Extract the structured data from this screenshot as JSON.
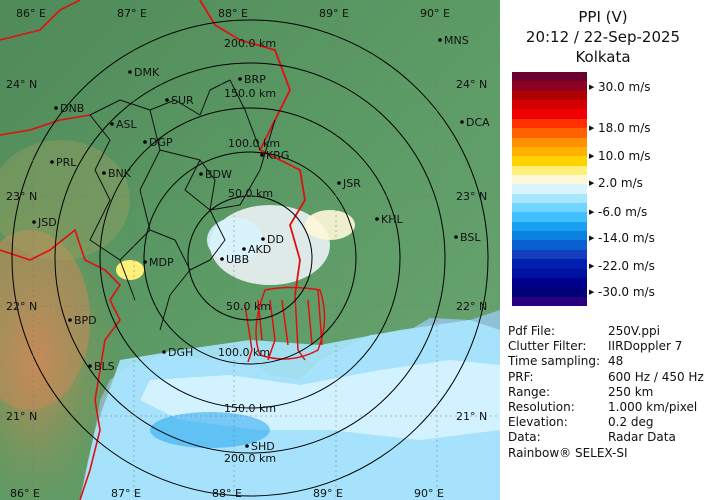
{
  "panel": {
    "title": "PPI (V)",
    "datetime": "20:12 / 22-Sep-2025",
    "site": "Kolkata",
    "footer": "Rainbow® SELEX-SI"
  },
  "scale": {
    "colors": [
      "#6a0030",
      "#8c0020",
      "#b00000",
      "#d40000",
      "#f00000",
      "#ff3000",
      "#ff6000",
      "#ff9000",
      "#ffb000",
      "#ffd200",
      "#fff07a",
      "#fff8d8",
      "#d8f4ff",
      "#a8e6ff",
      "#70d6ff",
      "#40c0ff",
      "#1aa0f0",
      "#0a80e0",
      "#0a60d0",
      "#1440c0",
      "#0020b0",
      "#0010a0",
      "#000090",
      "#000078",
      "#2a0080"
    ],
    "labels": [
      "30.0 m/s",
      "18.0 m/s",
      "10.0 m/s",
      "2.0 m/s",
      "-6.0 m/s",
      "-14.0 m/s",
      "-22.0 m/s",
      "-30.0 m/s"
    ]
  },
  "info": [
    {
      "label": "Pdf File:",
      "value": "250V.ppi"
    },
    {
      "label": "Clutter Filter:",
      "value": "IIRDoppler 7"
    },
    {
      "label": "Time sampling:",
      "value": "48"
    },
    {
      "label": "PRF:",
      "value": "600 Hz / 450 Hz"
    },
    {
      "label": "Range:",
      "value": "250 km"
    },
    {
      "label": "Resolution:",
      "value": "1.000 km/pixel"
    },
    {
      "label": "Elevation:",
      "value": "0.2 deg"
    },
    {
      "label": "Data:",
      "value": "Radar Data"
    }
  ],
  "map": {
    "lon_top": [
      "86° E",
      "87° E",
      "88° E",
      "89° E",
      "90° E"
    ],
    "lon_bottom": [
      "86° E",
      "87° E",
      "88° E",
      "89° E",
      "90° E"
    ],
    "lat_left": [
      "24° N",
      "23° N",
      "22° N",
      "21° N"
    ],
    "lat_right": [
      "24° N",
      "23° N",
      "22° N",
      "21° N"
    ],
    "range_rings": [
      "200.0 km",
      "150.0 km",
      "100.0 km",
      "50.0 km",
      "50.0 km",
      "100.0 km",
      "150.0 km",
      "200.0 km"
    ],
    "cities": [
      "MNS",
      "DMK",
      "BRP",
      "DNB",
      "SUR",
      "ASL",
      "DGP",
      "DCA",
      "PRL",
      "KRG",
      "BNK",
      "BDW",
      "JSR",
      "JSD",
      "KHL",
      "DD",
      "BSL",
      "AKD",
      "MDP",
      "UBB",
      "BPD",
      "DGH",
      "BLS",
      "SHD"
    ],
    "colors": {
      "ocean": "#8fc0d4",
      "land": "#5f9a6a",
      "border": "#e01010",
      "rings": "#000000"
    }
  }
}
